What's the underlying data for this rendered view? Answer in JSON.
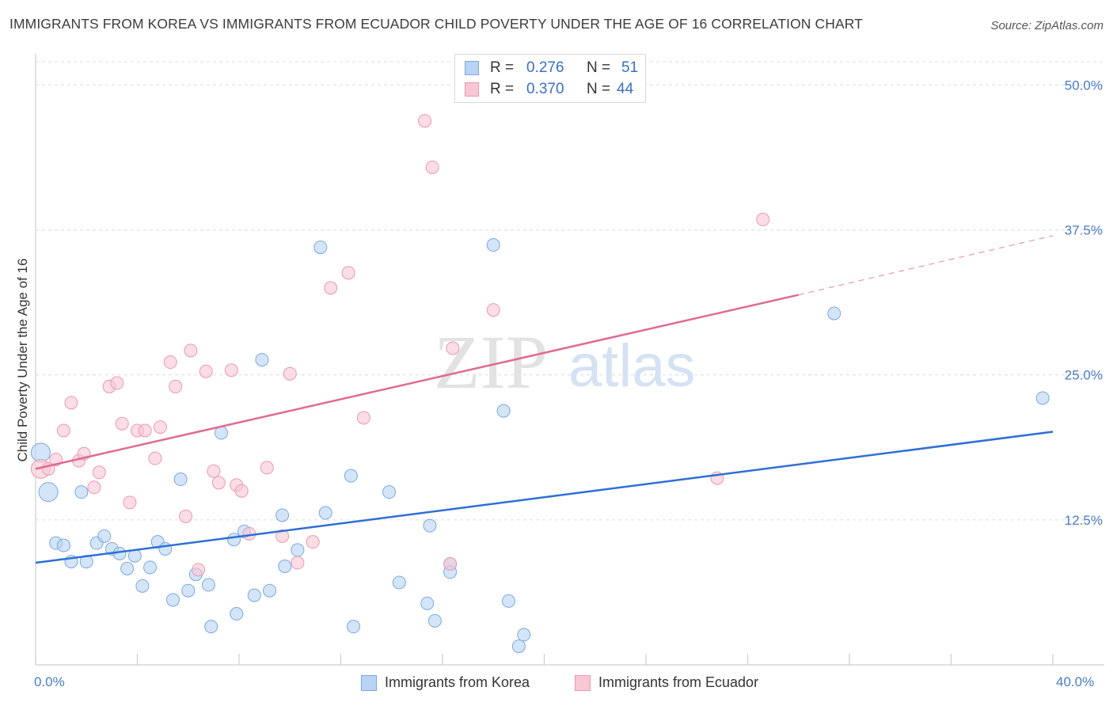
{
  "title": "IMMIGRANTS FROM KOREA VS IMMIGRANTS FROM ECUADOR CHILD POVERTY UNDER THE AGE OF 16 CORRELATION CHART",
  "source": "Source: ZipAtlas.com",
  "watermark": {
    "zip": "ZIP",
    "atlas": "atlas"
  },
  "legend": {
    "rows": [
      {
        "r_label": "R =",
        "r_value": "0.276",
        "n_label": "N =",
        "n_value": "51",
        "color": "#b8d3f4"
      },
      {
        "r_label": "R =",
        "r_value": "0.370",
        "n_label": "N =",
        "n_value": "44",
        "color": "#f9c6d4"
      }
    ]
  },
  "bottom_legend": [
    {
      "label": "Immigrants from Korea",
      "color": "#b8d3f4"
    },
    {
      "label": "Immigrants from Ecuador",
      "color": "#f9c6d4"
    }
  ],
  "x_labels": {
    "min": "0.0%",
    "max": "40.0%"
  },
  "chart_data": {
    "type": "scatter",
    "title": "IMMIGRANTS FROM KOREA VS IMMIGRANTS FROM ECUADOR CHILD POVERTY UNDER THE AGE OF 16 CORRELATION CHART",
    "xlabel": "",
    "ylabel": "Child Poverty Under the Age of 16",
    "xlim": [
      0,
      40
    ],
    "ylim": [
      0,
      52
    ],
    "y_ticks": [
      {
        "value": 12.5,
        "label": "12.5%"
      },
      {
        "value": 25.0,
        "label": "25.0%"
      },
      {
        "value": 37.5,
        "label": "37.5%"
      },
      {
        "value": 50.0,
        "label": "50.0%"
      }
    ],
    "x_ticks": [
      0,
      4,
      8,
      12,
      16,
      20,
      24,
      28,
      32,
      36,
      40
    ],
    "grid": true,
    "series": [
      {
        "name": "Immigrants from Korea",
        "color": "#b8d3f4",
        "stroke": "#7aa8e0",
        "trend": {
          "x0": 0,
          "y0": 8.8,
          "x1": 40,
          "y1": 20.1,
          "color": "#2f6fd6"
        },
        "points": [
          {
            "x": 0.2,
            "y": 18.3,
            "big": true
          },
          {
            "x": 0.5,
            "y": 14.9,
            "big": true
          },
          {
            "x": 0.8,
            "y": 10.5
          },
          {
            "x": 1.1,
            "y": 10.3
          },
          {
            "x": 1.4,
            "y": 8.9
          },
          {
            "x": 1.8,
            "y": 14.9
          },
          {
            "x": 2.0,
            "y": 8.9
          },
          {
            "x": 2.4,
            "y": 10.5
          },
          {
            "x": 2.7,
            "y": 11.1
          },
          {
            "x": 3.0,
            "y": 10.0
          },
          {
            "x": 3.3,
            "y": 9.6
          },
          {
            "x": 3.6,
            "y": 8.3
          },
          {
            "x": 3.9,
            "y": 9.4
          },
          {
            "x": 4.2,
            "y": 6.8
          },
          {
            "x": 4.5,
            "y": 8.4
          },
          {
            "x": 4.8,
            "y": 10.6
          },
          {
            "x": 5.1,
            "y": 10.0
          },
          {
            "x": 5.4,
            "y": 5.6
          },
          {
            "x": 5.7,
            "y": 16.0
          },
          {
            "x": 6.0,
            "y": 6.4
          },
          {
            "x": 6.3,
            "y": 7.8
          },
          {
            "x": 6.8,
            "y": 6.9
          },
          {
            "x": 6.9,
            "y": 3.3
          },
          {
            "x": 7.3,
            "y": 20.0
          },
          {
            "x": 7.8,
            "y": 10.8
          },
          {
            "x": 7.9,
            "y": 4.4
          },
          {
            "x": 8.2,
            "y": 11.5
          },
          {
            "x": 8.6,
            "y": 6.0
          },
          {
            "x": 8.9,
            "y": 26.3
          },
          {
            "x": 9.2,
            "y": 6.4
          },
          {
            "x": 9.7,
            "y": 12.9
          },
          {
            "x": 9.8,
            "y": 8.5
          },
          {
            "x": 10.3,
            "y": 9.9
          },
          {
            "x": 11.2,
            "y": 36.0
          },
          {
            "x": 11.4,
            "y": 13.1
          },
          {
            "x": 12.4,
            "y": 16.3
          },
          {
            "x": 12.5,
            "y": 3.3
          },
          {
            "x": 13.9,
            "y": 14.9
          },
          {
            "x": 14.3,
            "y": 7.1
          },
          {
            "x": 15.5,
            "y": 12.0
          },
          {
            "x": 15.4,
            "y": 5.3
          },
          {
            "x": 15.7,
            "y": 3.8
          },
          {
            "x": 16.3,
            "y": 8.7
          },
          {
            "x": 16.3,
            "y": 8.0
          },
          {
            "x": 18.0,
            "y": 36.2
          },
          {
            "x": 18.4,
            "y": 21.9
          },
          {
            "x": 18.6,
            "y": 5.5
          },
          {
            "x": 19.0,
            "y": 1.6
          },
          {
            "x": 19.2,
            "y": 2.6
          },
          {
            "x": 31.4,
            "y": 30.3
          },
          {
            "x": 39.6,
            "y": 23.0
          }
        ]
      },
      {
        "name": "Immigrants from Ecuador",
        "color": "#f9c6d4",
        "stroke": "#eb98b0",
        "trend": {
          "x0": 0,
          "y0": 16.9,
          "x1": 30.0,
          "y1": 31.9,
          "color": "#e06a94",
          "dashed_to": {
            "x": 40,
            "y": 37.0
          }
        },
        "points": [
          {
            "x": 0.2,
            "y": 16.9,
            "big": true
          },
          {
            "x": 0.5,
            "y": 16.9
          },
          {
            "x": 0.8,
            "y": 17.7
          },
          {
            "x": 1.1,
            "y": 20.2
          },
          {
            "x": 1.4,
            "y": 22.6
          },
          {
            "x": 1.7,
            "y": 17.6
          },
          {
            "x": 1.9,
            "y": 18.2
          },
          {
            "x": 2.3,
            "y": 15.3
          },
          {
            "x": 2.5,
            "y": 16.6
          },
          {
            "x": 2.9,
            "y": 24.0
          },
          {
            "x": 3.2,
            "y": 24.3
          },
          {
            "x": 3.4,
            "y": 20.8
          },
          {
            "x": 3.7,
            "y": 14.0
          },
          {
            "x": 4.0,
            "y": 20.2
          },
          {
            "x": 4.3,
            "y": 20.2
          },
          {
            "x": 4.7,
            "y": 17.8
          },
          {
            "x": 4.9,
            "y": 20.5
          },
          {
            "x": 5.3,
            "y": 26.1
          },
          {
            "x": 5.5,
            "y": 24.0
          },
          {
            "x": 5.9,
            "y": 12.8
          },
          {
            "x": 6.1,
            "y": 27.1
          },
          {
            "x": 6.4,
            "y": 8.2
          },
          {
            "x": 6.7,
            "y": 25.3
          },
          {
            "x": 7.0,
            "y": 16.7
          },
          {
            "x": 7.2,
            "y": 15.7
          },
          {
            "x": 7.7,
            "y": 25.4
          },
          {
            "x": 7.9,
            "y": 15.5
          },
          {
            "x": 8.1,
            "y": 15.0
          },
          {
            "x": 8.4,
            "y": 11.3
          },
          {
            "x": 9.1,
            "y": 17.0
          },
          {
            "x": 9.7,
            "y": 11.1
          },
          {
            "x": 10.0,
            "y": 25.1
          },
          {
            "x": 10.3,
            "y": 8.8
          },
          {
            "x": 10.9,
            "y": 10.6
          },
          {
            "x": 11.6,
            "y": 32.5
          },
          {
            "x": 12.3,
            "y": 33.8
          },
          {
            "x": 12.9,
            "y": 21.3
          },
          {
            "x": 15.3,
            "y": 46.9
          },
          {
            "x": 15.6,
            "y": 42.9
          },
          {
            "x": 16.4,
            "y": 27.3
          },
          {
            "x": 16.3,
            "y": 8.7
          },
          {
            "x": 18.0,
            "y": 30.6
          },
          {
            "x": 26.8,
            "y": 16.1
          },
          {
            "x": 28.6,
            "y": 38.4
          }
        ]
      }
    ]
  }
}
